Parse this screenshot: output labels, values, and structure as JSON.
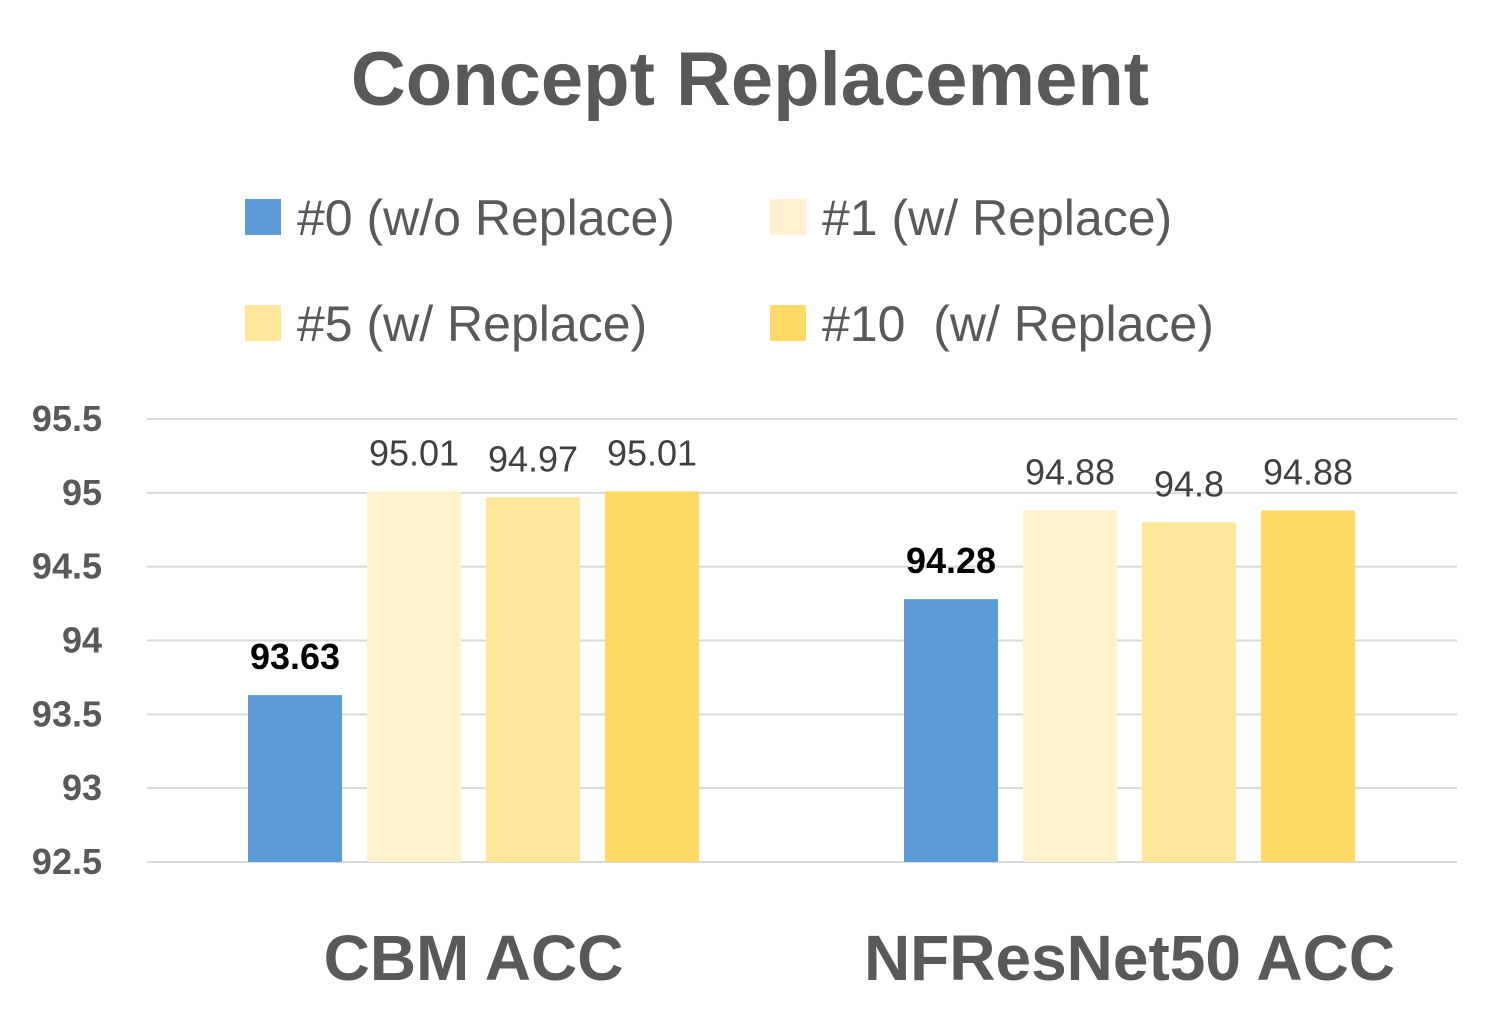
{
  "chart_data": {
    "type": "bar",
    "title": "Concept Replacement",
    "xlabel": "",
    "ylabel": "",
    "categories": [
      "CBM ACC",
      "NFResNet50 ACC"
    ],
    "series": [
      {
        "name": "#0 (w/o Replace)",
        "color": "#5b9bd5",
        "values": [
          93.63,
          94.28
        ],
        "labels": [
          "93.63",
          "94.28"
        ],
        "label_emphasis": true
      },
      {
        "name": "#1 (w/ Replace)",
        "color": "#fff2cc",
        "values": [
          95.01,
          94.88
        ],
        "labels": [
          "95.01",
          "94.88"
        ],
        "label_emphasis": false
      },
      {
        "name": "#5 (w/ Replace)",
        "color": "#ffe699",
        "values": [
          94.97,
          94.8
        ],
        "labels": [
          "94.97",
          "94.8"
        ],
        "label_emphasis": false
      },
      {
        "name": "#10  (w/ Replace)",
        "color": "#ffd966",
        "values": [
          95.01,
          94.88
        ],
        "labels": [
          "95.01",
          "94.88"
        ],
        "label_emphasis": false
      }
    ],
    "ylim": [
      92.5,
      95.5
    ],
    "yticks": [
      "92.5",
      "93",
      "93.5",
      "94",
      "94.5",
      "95",
      "95.5"
    ],
    "grid": true,
    "legend_position": "top"
  }
}
